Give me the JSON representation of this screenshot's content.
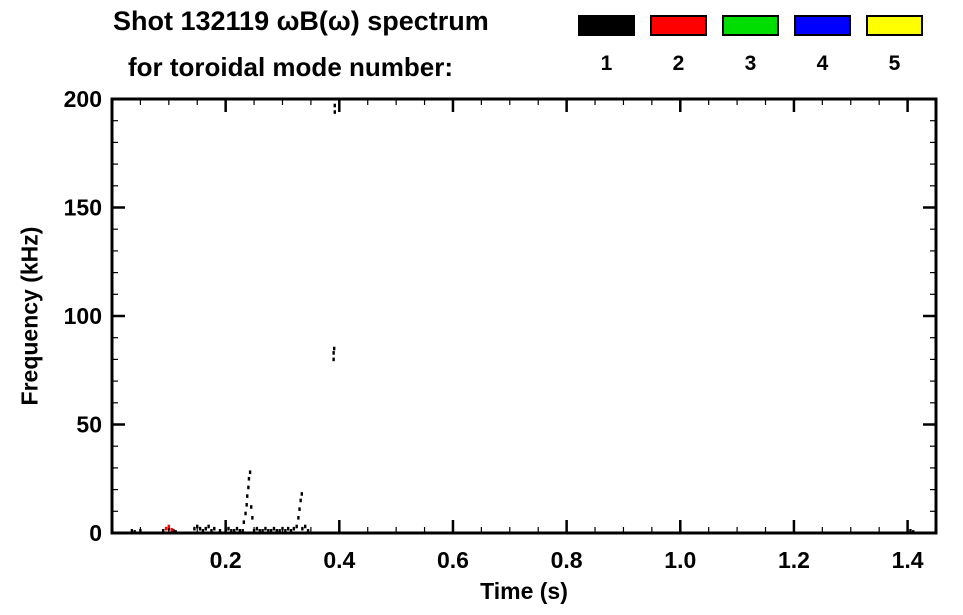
{
  "header": {
    "title_line1": "Shot 132119 ωB(ω) spectrum",
    "title_line2": "for toroidal mode number:"
  },
  "legend": {
    "items": [
      {
        "label": "1",
        "color": "#000000"
      },
      {
        "label": "2",
        "color": "#ff0000"
      },
      {
        "label": "3",
        "color": "#00dd00"
      },
      {
        "label": "4",
        "color": "#0000ff"
      },
      {
        "label": "5",
        "color": "#ffff00"
      }
    ]
  },
  "chart_data": {
    "type": "scatter",
    "title": "Shot 132119 ωB(ω) spectrum for toroidal mode number: 1 2 3 4 5",
    "xlabel": "Time (s)",
    "ylabel": "Frequency (kHz)",
    "xlim": [
      0,
      1.45
    ],
    "ylim": [
      0,
      200
    ],
    "xticks": [
      0.2,
      0.4,
      0.6,
      0.8,
      1.0,
      1.2,
      1.4
    ],
    "xtick_labels": [
      "0.2",
      "0.4",
      "0.6",
      "0.8",
      "1.0",
      "1.2",
      "1.4"
    ],
    "yticks": [
      0,
      50,
      100,
      150,
      200
    ],
    "ytick_labels": [
      "0",
      "50",
      "100",
      "150",
      "200"
    ],
    "x_minor_step": 0.05,
    "y_minor_step": 10,
    "grid": false,
    "legend_position": "top-right",
    "series": [
      {
        "name": "1",
        "color": "#000000",
        "points": [
          [
            0.035,
            1
          ],
          [
            0.04,
            0.5
          ],
          [
            0.05,
            1
          ],
          [
            0.09,
            1
          ],
          [
            0.1,
            2
          ],
          [
            0.108,
            1
          ],
          [
            0.112,
            0.5
          ],
          [
            0.145,
            2
          ],
          [
            0.15,
            3
          ],
          [
            0.155,
            2
          ],
          [
            0.16,
            1
          ],
          [
            0.165,
            2
          ],
          [
            0.17,
            3
          ],
          [
            0.175,
            1
          ],
          [
            0.18,
            2
          ],
          [
            0.19,
            1
          ],
          [
            0.2,
            1
          ],
          [
            0.205,
            2
          ],
          [
            0.21,
            1
          ],
          [
            0.215,
            1
          ],
          [
            0.22,
            2
          ],
          [
            0.225,
            1
          ],
          [
            0.23,
            1
          ],
          [
            0.232,
            5
          ],
          [
            0.235,
            9
          ],
          [
            0.237,
            13
          ],
          [
            0.238,
            17
          ],
          [
            0.24,
            21
          ],
          [
            0.241,
            25
          ],
          [
            0.243,
            28
          ],
          [
            0.245,
            12
          ],
          [
            0.247,
            7
          ],
          [
            0.25,
            1
          ],
          [
            0.255,
            2
          ],
          [
            0.26,
            1
          ],
          [
            0.265,
            1
          ],
          [
            0.27,
            2
          ],
          [
            0.275,
            1
          ],
          [
            0.28,
            1
          ],
          [
            0.285,
            2
          ],
          [
            0.29,
            1
          ],
          [
            0.295,
            1
          ],
          [
            0.3,
            2
          ],
          [
            0.305,
            1
          ],
          [
            0.31,
            2
          ],
          [
            0.315,
            1
          ],
          [
            0.32,
            2
          ],
          [
            0.325,
            3
          ],
          [
            0.328,
            7
          ],
          [
            0.33,
            11
          ],
          [
            0.332,
            15
          ],
          [
            0.334,
            18
          ],
          [
            0.335,
            2
          ],
          [
            0.34,
            3
          ],
          [
            0.345,
            1
          ],
          [
            0.39,
            80
          ],
          [
            0.39,
            83
          ],
          [
            0.391,
            85
          ],
          [
            0.392,
            194
          ],
          [
            0.392,
            197
          ],
          [
            1.405,
            1
          ],
          [
            1.41,
            0.5
          ]
        ]
      },
      {
        "name": "2",
        "color": "#ff0000",
        "points": [
          [
            0.095,
            2
          ],
          [
            0.1,
            3
          ],
          [
            0.105,
            1.5
          ]
        ]
      },
      {
        "name": "3",
        "color": "#00dd00",
        "points": []
      },
      {
        "name": "4",
        "color": "#0000ff",
        "points": []
      },
      {
        "name": "5",
        "color": "#ffff00",
        "points": []
      }
    ]
  }
}
